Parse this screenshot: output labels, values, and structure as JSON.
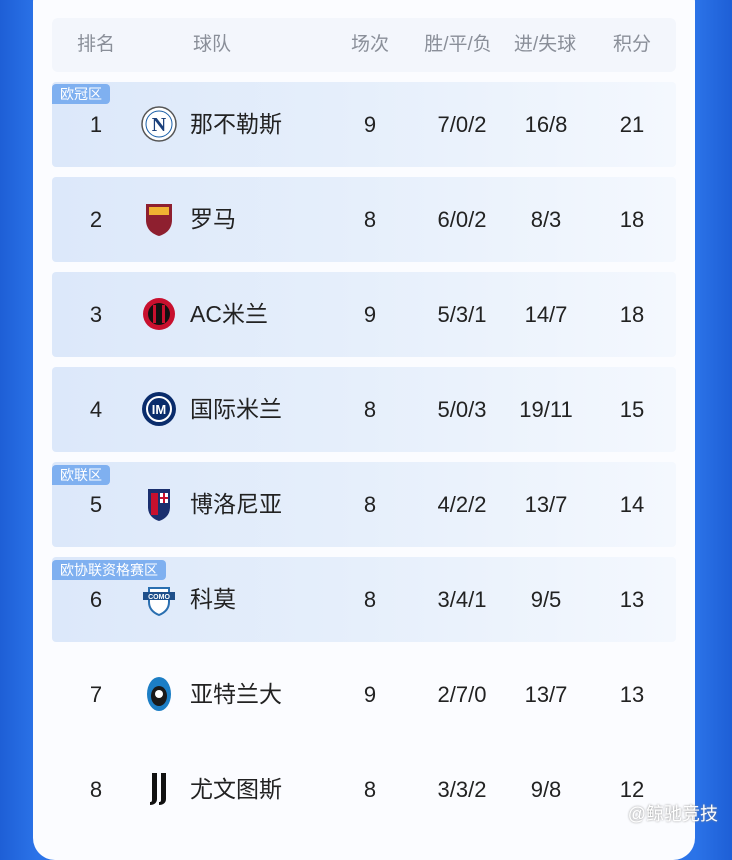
{
  "header": {
    "rank": "排名",
    "team": "球队",
    "played": "场次",
    "wdl": "胜/平/负",
    "goals": "进/失球",
    "points": "积分"
  },
  "zones": {
    "ucl": "欧冠区",
    "uel": "欧联区",
    "uecl": "欧协联资格赛区"
  },
  "rows": [
    {
      "rank": "1",
      "team": "那不勒斯",
      "played": "9",
      "wdl": "7/0/2",
      "goals": "16/8",
      "points": "21",
      "logo": "napoli-logo"
    },
    {
      "rank": "2",
      "team": "罗马",
      "played": "8",
      "wdl": "6/0/2",
      "goals": "8/3",
      "points": "18",
      "logo": "roma-logo"
    },
    {
      "rank": "3",
      "team": "AC米兰",
      "played": "9",
      "wdl": "5/3/1",
      "goals": "14/7",
      "points": "18",
      "logo": "milan-logo"
    },
    {
      "rank": "4",
      "team": "国际米兰",
      "played": "8",
      "wdl": "5/0/3",
      "goals": "19/11",
      "points": "15",
      "logo": "inter-logo"
    },
    {
      "rank": "5",
      "team": "博洛尼亚",
      "played": "8",
      "wdl": "4/2/2",
      "goals": "13/7",
      "points": "14",
      "logo": "bologna-logo"
    },
    {
      "rank": "6",
      "team": "科莫",
      "played": "8",
      "wdl": "3/4/1",
      "goals": "9/5",
      "points": "13",
      "logo": "como-logo"
    },
    {
      "rank": "7",
      "team": "亚特兰大",
      "played": "9",
      "wdl": "2/7/0",
      "goals": "13/7",
      "points": "13",
      "logo": "atalanta-logo"
    },
    {
      "rank": "8",
      "team": "尤文图斯",
      "played": "8",
      "wdl": "3/3/2",
      "goals": "9/8",
      "points": "12",
      "logo": "juventus-logo"
    }
  ],
  "watermark": "@鲸驰竞技",
  "colors": {
    "background": "#2b73e8",
    "highlight_row": "#dce8fa",
    "tag": "#7fb0f0"
  }
}
